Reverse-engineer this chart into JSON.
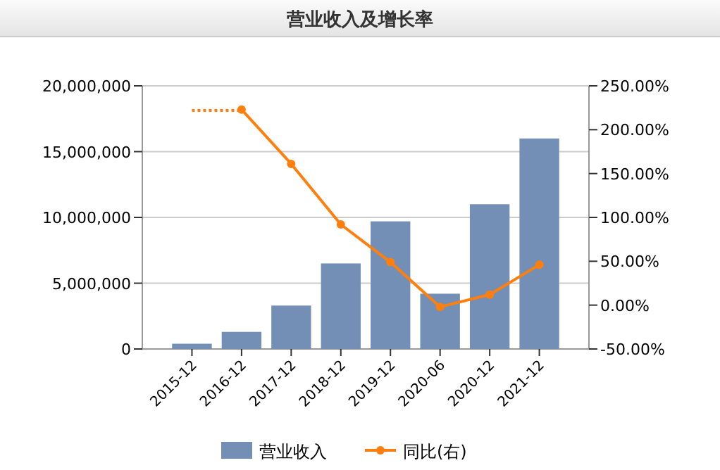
{
  "chart_data": {
    "type": "bar",
    "title": "营业收入及增长率",
    "categories": [
      "2015-12",
      "2016-12",
      "2017-12",
      "2018-12",
      "2019-12",
      "2020-06",
      "2020-12",
      "2021-12"
    ],
    "series": [
      {
        "name": "营业收入",
        "color": "#738fb6",
        "values": [
          400000,
          1300000,
          3300000,
          6500000,
          9700000,
          4200000,
          11000000,
          16000000
        ]
      },
      {
        "name": "同比(右)",
        "type": "line",
        "axis": "y2",
        "color": "#ff7f0e",
        "marker": "circle",
        "line_style": "solid",
        "values": [
          null,
          223,
          161,
          92,
          49,
          -2,
          12,
          46
        ]
      },
      {
        "type": "line",
        "axis": "y2",
        "color": "#ff7f0e",
        "marker": "none",
        "line_style": "dotted",
        "values": [
          222,
          222,
          null,
          null,
          null,
          null,
          null,
          null
        ]
      }
    ],
    "ylim": [
      0,
      20000000
    ],
    "yticks": [
      {
        "value": 0,
        "label": "0"
      },
      {
        "value": 5000000,
        "label": "5,000,000"
      },
      {
        "value": 10000000,
        "label": "10,000,000"
      },
      {
        "value": 15000000,
        "label": "15,000,000"
      },
      {
        "value": 20000000,
        "label": "20,000,000"
      }
    ],
    "y2lim": [
      -50,
      250
    ],
    "y2ticks": [
      {
        "value": -50,
        "label": "-50.00%"
      },
      {
        "value": 0,
        "label": "0.00%"
      },
      {
        "value": 50,
        "label": "50.00%"
      },
      {
        "value": 100,
        "label": "100.00%"
      },
      {
        "value": 150,
        "label": "150.00%"
      },
      {
        "value": 200,
        "label": "200.00%"
      },
      {
        "value": 250,
        "label": "250.00%"
      }
    ],
    "grid": "y",
    "legend": "bottom"
  }
}
